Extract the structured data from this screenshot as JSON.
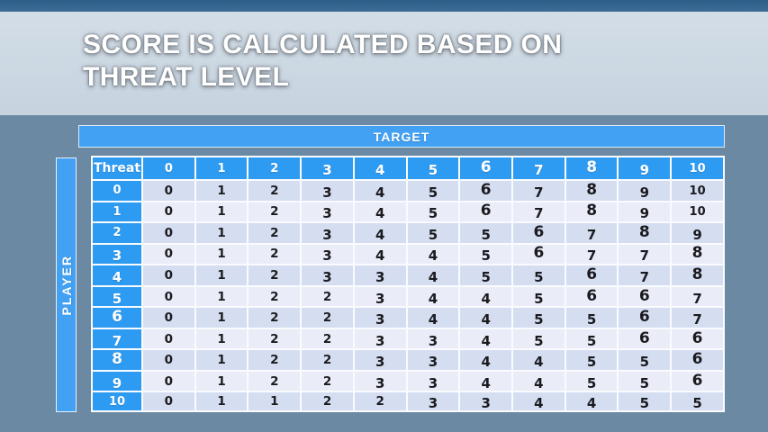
{
  "slide": {
    "title": "SCORE IS CALCULATED BASED ON THREAT LEVEL"
  },
  "matrix": {
    "target_label": "TARGET",
    "player_label": "PLAYER",
    "corner_label": "Threat",
    "column_headers": [
      "0",
      "1",
      "2",
      "3",
      "4",
      "5",
      "6",
      "7",
      "8",
      "9",
      "10"
    ],
    "row_headers": [
      "0",
      "1",
      "2",
      "3",
      "4",
      "5",
      "6",
      "7",
      "8",
      "9",
      "10"
    ],
    "rows": [
      [
        0,
        1,
        2,
        3,
        4,
        5,
        6,
        7,
        8,
        9,
        10
      ],
      [
        0,
        1,
        2,
        3,
        4,
        5,
        6,
        7,
        8,
        9,
        10
      ],
      [
        0,
        1,
        2,
        3,
        4,
        5,
        5,
        6,
        7,
        8,
        9
      ],
      [
        0,
        1,
        2,
        3,
        4,
        4,
        5,
        6,
        7,
        7,
        8
      ],
      [
        0,
        1,
        2,
        3,
        3,
        4,
        5,
        5,
        6,
        7,
        8
      ],
      [
        0,
        1,
        2,
        2,
        3,
        4,
        4,
        5,
        6,
        6,
        7
      ],
      [
        0,
        1,
        2,
        2,
        3,
        4,
        4,
        5,
        5,
        6,
        7
      ],
      [
        0,
        1,
        2,
        2,
        3,
        3,
        4,
        5,
        5,
        6,
        6
      ],
      [
        0,
        1,
        2,
        2,
        3,
        3,
        4,
        4,
        5,
        5,
        6
      ],
      [
        0,
        1,
        2,
        2,
        3,
        3,
        4,
        4,
        5,
        5,
        6
      ],
      [
        0,
        1,
        1,
        2,
        2,
        3,
        3,
        4,
        4,
        5,
        5
      ]
    ]
  },
  "colors": {
    "accent_blue": "#2e9bf2",
    "bar_blue": "#42a1f3",
    "row_shade_dark": "#d5ddf1",
    "row_shade_light": "#eaedf8",
    "header_text": "#ffffff",
    "cell_text": "#1b1b1f",
    "title_text": "#ffffff",
    "title_band": "#cdd9e4"
  }
}
